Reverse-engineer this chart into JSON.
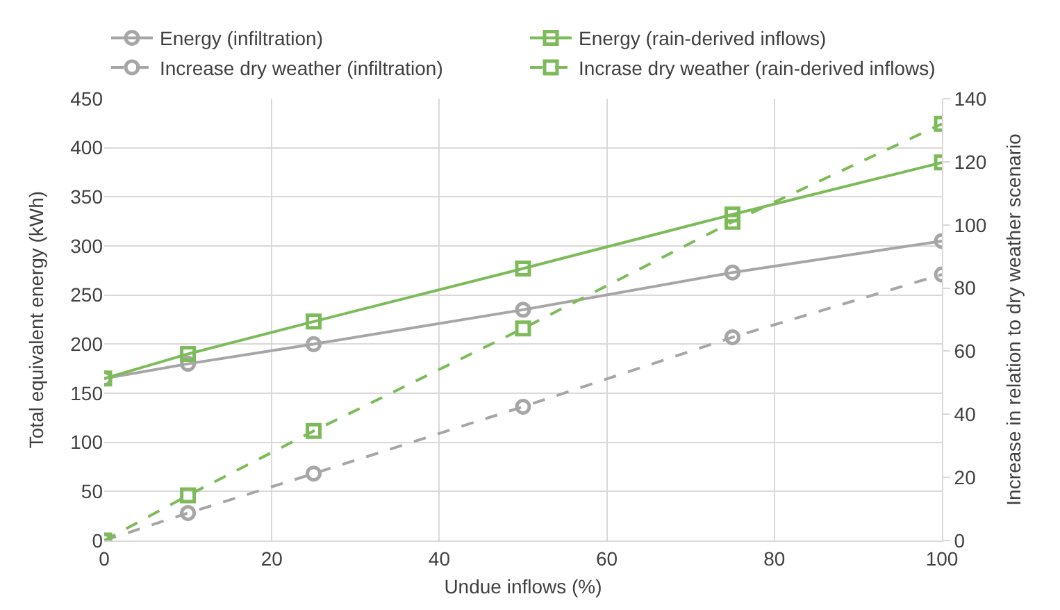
{
  "chart_data": {
    "type": "line",
    "xlabel": "Undue inflows (%)",
    "ylabel": "Total equivalent energy (kWh)",
    "y2label": "Increase in relation to dry weather scenario",
    "x": [
      0,
      10,
      25,
      50,
      75,
      100
    ],
    "series": [
      {
        "name": "Energy (infiltration)",
        "color": "#a6a6a6",
        "values": [
          165,
          180,
          200,
          235,
          273,
          305
        ],
        "marker": "circle",
        "line_style": "solid"
      },
      {
        "name": "Energy (rain-derived inflows)",
        "color": "#7dbb5a",
        "values": [
          165,
          190,
          223,
          277,
          332,
          385
        ],
        "marker": "square",
        "line_style": "solid"
      },
      {
        "name": "Increase dry weather (infiltration)",
        "color": "#a6a6a6",
        "values": [
          0,
          8.7,
          21.2,
          42.4,
          64.4,
          84.3
        ],
        "marker": "circle",
        "line_style": "dashed",
        "axis": "y2"
      },
      {
        "name": "Incrase dry weather (rain-derived inflows)",
        "color": "#7dbb5a",
        "values": [
          0,
          14.3,
          34.7,
          67.2,
          101,
          132
        ],
        "marker": "square",
        "line_style": "dashed",
        "axis": "y2"
      }
    ],
    "xlim": [
      0,
      100
    ],
    "xticks": [
      0,
      20,
      40,
      60,
      80,
      100
    ],
    "ylim": [
      0,
      450
    ],
    "yticks": [
      0,
      50,
      100,
      150,
      200,
      250,
      300,
      350,
      400,
      450
    ],
    "y2lim": [
      0,
      140
    ],
    "y2ticks": [
      0,
      20,
      40,
      60,
      80,
      100,
      120,
      140
    ],
    "grid": true,
    "legend": "top"
  }
}
